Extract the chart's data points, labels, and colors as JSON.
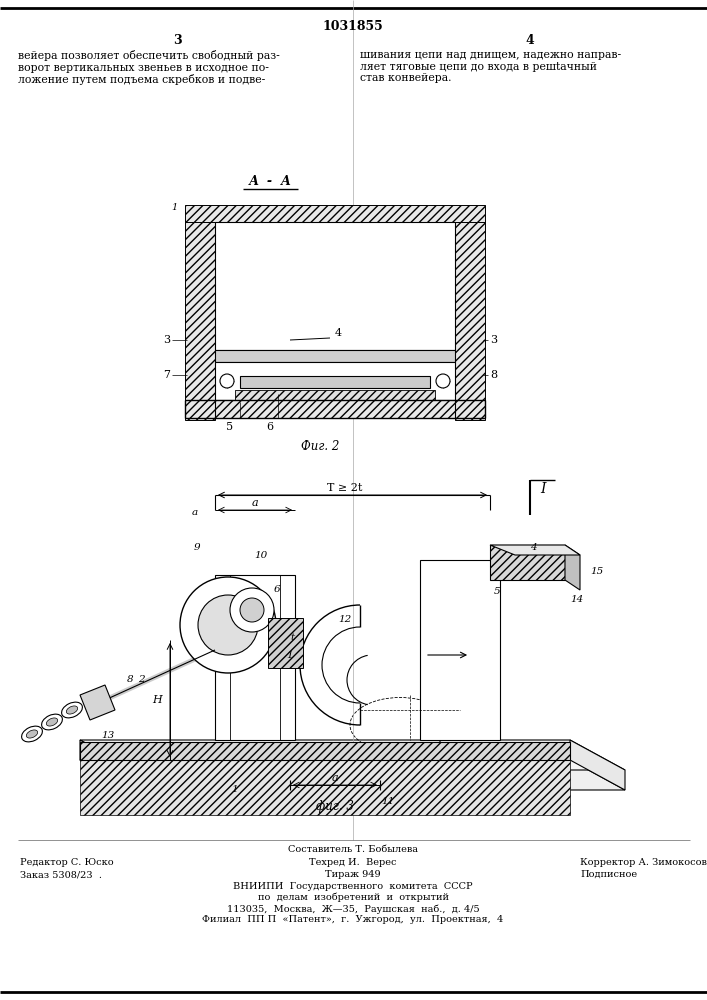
{
  "page_number": "1031855",
  "col_left": "3",
  "col_right": "4",
  "text_left": "вейера позволяет обеспечить свободный раз-\nворот вертикальных звеньев в исходное по-\nложение путем подъема скребков и подве-",
  "text_right": "шивания цепи над днищем, надежно направ-\nляет тяговые цепи до входа в решtачный\nстав конвейера.",
  "fig2_label": "А  -  А",
  "fig2_caption": "Фиг. 2",
  "fig3_caption": "фиг. 3",
  "footer_line1_center": "Составитель Т. Бобылева",
  "footer_col1_row1": "Редактор С. Юско",
  "footer_col2_row1": "Техред И.  Верес",
  "footer_col3_row1": "Корректор А. Зимокосов",
  "footer_col1_row2": "Заказ 5308/23  .",
  "footer_col2_row2": "Тираж 949",
  "footer_col3_row2": "Подписное",
  "footer_vniip1": "ВНИИПИ  Государственного  комитета  СССР",
  "footer_vniip2": "по  делам  изобретений  и  открытий",
  "footer_vniip3": "113035,  Москва,  Ж—35,  Раушская  наб.,  д. 4/5",
  "footer_vniip4": "Филиал  ПП П  «Патент»,  г.  Ужгород,  ул.  Проектная,  4",
  "bg_color": "#ffffff",
  "lc": "#000000"
}
